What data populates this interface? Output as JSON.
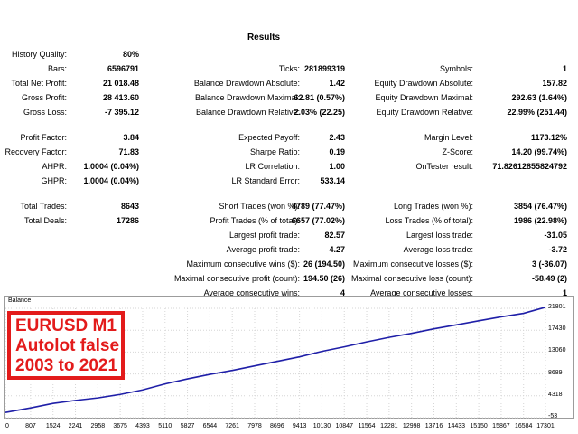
{
  "title": "Results",
  "stats": [
    {
      "label": "History Quality:",
      "value": "80%"
    },
    {
      "label": "Bars:",
      "value": "6596791"
    },
    {
      "label": "Ticks:",
      "value": "281899319"
    },
    {
      "label": "Symbols:",
      "value": "1"
    },
    {
      "label": "Total Net Profit:",
      "value": "21 018.48"
    },
    {
      "label": "Balance Drawdown Absolute:",
      "value": "1.42"
    },
    {
      "label": "Equity Drawdown Absolute:",
      "value": "157.82"
    },
    {
      "label": "Gross Profit:",
      "value": "28 413.60"
    },
    {
      "label": "Balance Drawdown Maximal:",
      "value": "62.81 (0.57%)"
    },
    {
      "label": "Equity Drawdown Maximal:",
      "value": "292.63 (1.64%)"
    },
    {
      "label": "Gross Loss:",
      "value": "-7 395.12"
    },
    {
      "label": "Balance Drawdown Relative:",
      "value": "2.03% (22.25)"
    },
    {
      "label": "Equity Drawdown Relative:",
      "value": "22.99% (251.44)"
    },
    {
      "label": "Profit Factor:",
      "value": "3.84"
    },
    {
      "label": "Expected Payoff:",
      "value": "2.43"
    },
    {
      "label": "Margin Level:",
      "value": "1173.12%"
    },
    {
      "label": "Recovery Factor:",
      "value": "71.83"
    },
    {
      "label": "Sharpe Ratio:",
      "value": "0.19"
    },
    {
      "label": "Z-Score:",
      "value": "14.20 (99.74%)"
    },
    {
      "label": "AHPR:",
      "value": "1.0004 (0.04%)"
    },
    {
      "label": "LR Correlation:",
      "value": "1.00"
    },
    {
      "label": "OnTester result:",
      "value": "71.82612855824792"
    },
    {
      "label": "GHPR:",
      "value": "1.0004 (0.04%)"
    },
    {
      "label": "LR Standard Error:",
      "value": "533.14"
    },
    {
      "label": "Total Trades:",
      "value": "8643"
    },
    {
      "label": "Short Trades (won %):",
      "value": "4789 (77.47%)"
    },
    {
      "label": "Long Trades (won %):",
      "value": "3854 (76.47%)"
    },
    {
      "label": "Total Deals:",
      "value": "17286"
    },
    {
      "label": "Profit Trades (% of total):",
      "value": "6657 (77.02%)"
    },
    {
      "label": "Loss Trades (% of total):",
      "value": "1986 (22.98%)"
    },
    {
      "label": "Largest profit trade:",
      "value": "82.57"
    },
    {
      "label": "Largest loss trade:",
      "value": "-31.05"
    },
    {
      "label": "Average profit trade:",
      "value": "4.27"
    },
    {
      "label": "Average loss trade:",
      "value": "-3.72"
    },
    {
      "label": "Maximum consecutive wins ($):",
      "value": "26 (194.50)"
    },
    {
      "label": "Maximum consecutive losses ($):",
      "value": "3 (-36.07)"
    },
    {
      "label": "Maximal consecutive profit (count):",
      "value": "194.50 (26)"
    },
    {
      "label": "Maximal consecutive loss (count):",
      "value": "-58.49 (2)"
    },
    {
      "label": "Average consecutive wins:",
      "value": "4"
    },
    {
      "label": "Average consecutive losses:",
      "value": "1"
    }
  ],
  "chart": {
    "title": "Balance",
    "line_color": "#1f1fa8",
    "overlay_lines": [
      "EURUSD M1",
      "Autolot false",
      "2003 to 2021"
    ],
    "overlay_color": "#e31b1b"
  },
  "chart_data": {
    "type": "line",
    "title": "Balance",
    "xlabel": "",
    "ylabel": "",
    "x_ticks": [
      "0",
      "807",
      "1524",
      "2241",
      "2958",
      "3675",
      "4393",
      "5110",
      "5827",
      "6544",
      "7261",
      "7978",
      "8696",
      "9413",
      "10130",
      "10847",
      "11564",
      "12281",
      "12998",
      "13716",
      "14433",
      "15150",
      "15867",
      "16584",
      "17301"
    ],
    "y_ticks": [
      "21801",
      "17430",
      "13060",
      "8689",
      "4318",
      "-53"
    ],
    "ylim": [
      -53,
      21801
    ],
    "xlim": [
      0,
      17286
    ],
    "grid": true,
    "series": [
      {
        "x": [
          0,
          807,
          1524,
          2241,
          2958,
          3675,
          4393,
          5110,
          5827,
          6544,
          7261,
          7978,
          8696,
          9413,
          10130,
          10847,
          11564,
          12281,
          12998,
          13716,
          14433,
          15150,
          15867,
          16584,
          17286
        ],
        "values": [
          1000,
          1900,
          2800,
          3400,
          3900,
          4600,
          5500,
          6700,
          7700,
          8600,
          9400,
          10300,
          11200,
          12100,
          13200,
          14100,
          15100,
          16000,
          16800,
          17700,
          18500,
          19300,
          20100,
          20800,
          22018
        ]
      }
    ]
  }
}
